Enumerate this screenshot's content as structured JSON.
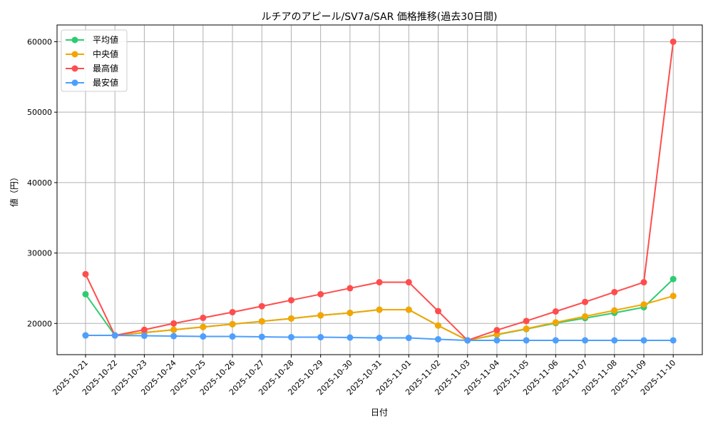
{
  "chart_data": {
    "type": "line",
    "title": "ルチアのアピール/SV7a/SAR 価格推移(過去30日間)",
    "xlabel": "日付",
    "ylabel": "値（円）",
    "ylim": [
      15570,
      62380
    ],
    "yticks": [
      20000,
      30000,
      40000,
      50000,
      60000
    ],
    "grid": true,
    "legend": "top-left",
    "x": [
      "2025-10-21",
      "2025-10-22",
      "2025-10-23",
      "2025-10-24",
      "2025-10-25",
      "2025-10-26",
      "2025-10-27",
      "2025-10-28",
      "2025-10-29",
      "2025-10-30",
      "2025-10-31",
      "2025-11-01",
      "2025-11-02",
      "2025-11-03",
      "2025-11-04",
      "2025-11-05",
      "2025-11-06",
      "2025-11-07",
      "2025-11-08",
      "2025-11-09",
      "2025-11-10"
    ],
    "series": [
      {
        "name": "平均値",
        "color": "#2ecc71",
        "values": [
          24150,
          18300,
          18700,
          19100,
          19500,
          19900,
          20300,
          20700,
          21150,
          21500,
          21950,
          21950,
          19700,
          17600,
          18400,
          19200,
          20050,
          20750,
          21500,
          22300,
          26300
        ]
      },
      {
        "name": "中央値",
        "color": "#f5a500",
        "values": [
          18300,
          18300,
          18700,
          19100,
          19500,
          19900,
          20300,
          20700,
          21150,
          21500,
          21950,
          21950,
          19700,
          17600,
          18450,
          19250,
          20150,
          21000,
          21850,
          22700,
          23900
        ]
      },
      {
        "name": "最高値",
        "color": "#ff4d4d",
        "values": [
          27000,
          18300,
          19100,
          20000,
          20800,
          21600,
          22450,
          23300,
          24150,
          25000,
          25850,
          25850,
          21750,
          17600,
          19050,
          20350,
          21700,
          23050,
          24450,
          25850,
          60000
        ]
      },
      {
        "name": "最安値",
        "color": "#4d9fff",
        "values": [
          18300,
          18300,
          18250,
          18200,
          18150,
          18150,
          18100,
          18050,
          18050,
          18000,
          17950,
          17950,
          17750,
          17600,
          17600,
          17600,
          17600,
          17600,
          17600,
          17600,
          17600
        ]
      }
    ]
  }
}
